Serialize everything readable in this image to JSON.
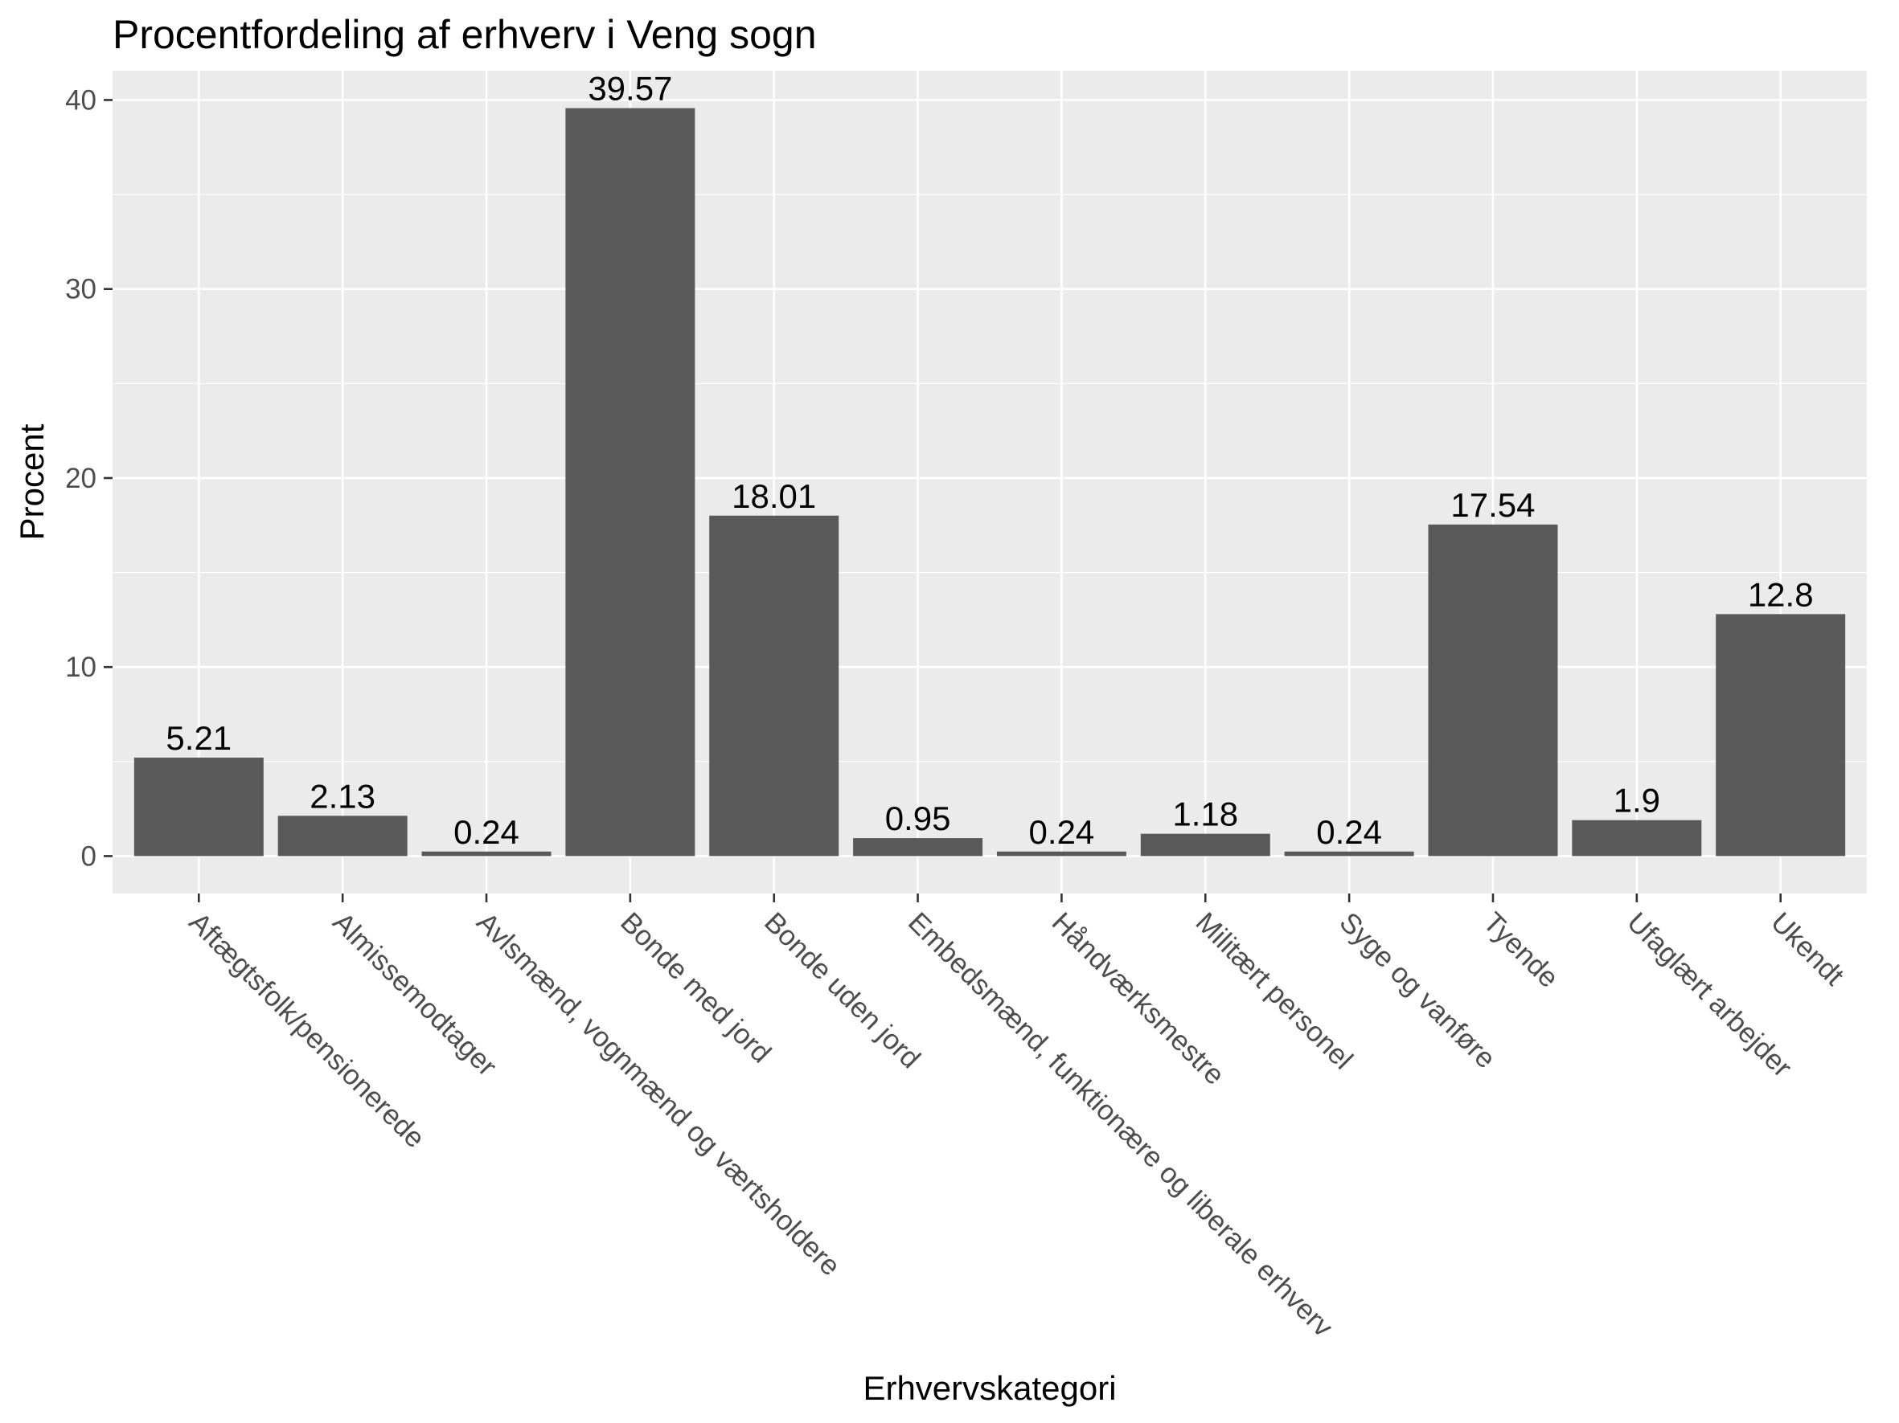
{
  "chart_data": {
    "type": "bar",
    "title": "Procentfordeling af erhverv i Veng sogn",
    "xlabel": "Erhvervskategori",
    "ylabel": "Procent",
    "ylim": [
      -1.98,
      41.55
    ],
    "yticks": [
      0,
      10,
      20,
      30,
      40
    ],
    "grid": true,
    "colors": {
      "panel": "#ebebeb",
      "grid": "#ffffff",
      "bar": "#595959"
    },
    "categories": [
      "Aftægtsfolk/pensionerede",
      "Almissemodtager",
      "Avlsmænd, vognmænd og værtsholdere",
      "Bonde med jord",
      "Bonde uden jord",
      "Embedsmænd, funktionære og liberale erhverv",
      "Håndværksmestre",
      "Militært personel",
      "Syge og vanføre",
      "Tyende",
      "Ufaglært arbejder",
      "Ukendt"
    ],
    "values": [
      5.21,
      2.13,
      0.24,
      39.57,
      18.01,
      0.95,
      0.24,
      1.18,
      0.24,
      17.54,
      1.9,
      12.8
    ],
    "value_labels": [
      "5.21",
      "2.13",
      "0.24",
      "39.57",
      "18.01",
      "0.95",
      "0.24",
      "1.18",
      "0.24",
      "17.54",
      "1.9",
      "12.8"
    ]
  }
}
